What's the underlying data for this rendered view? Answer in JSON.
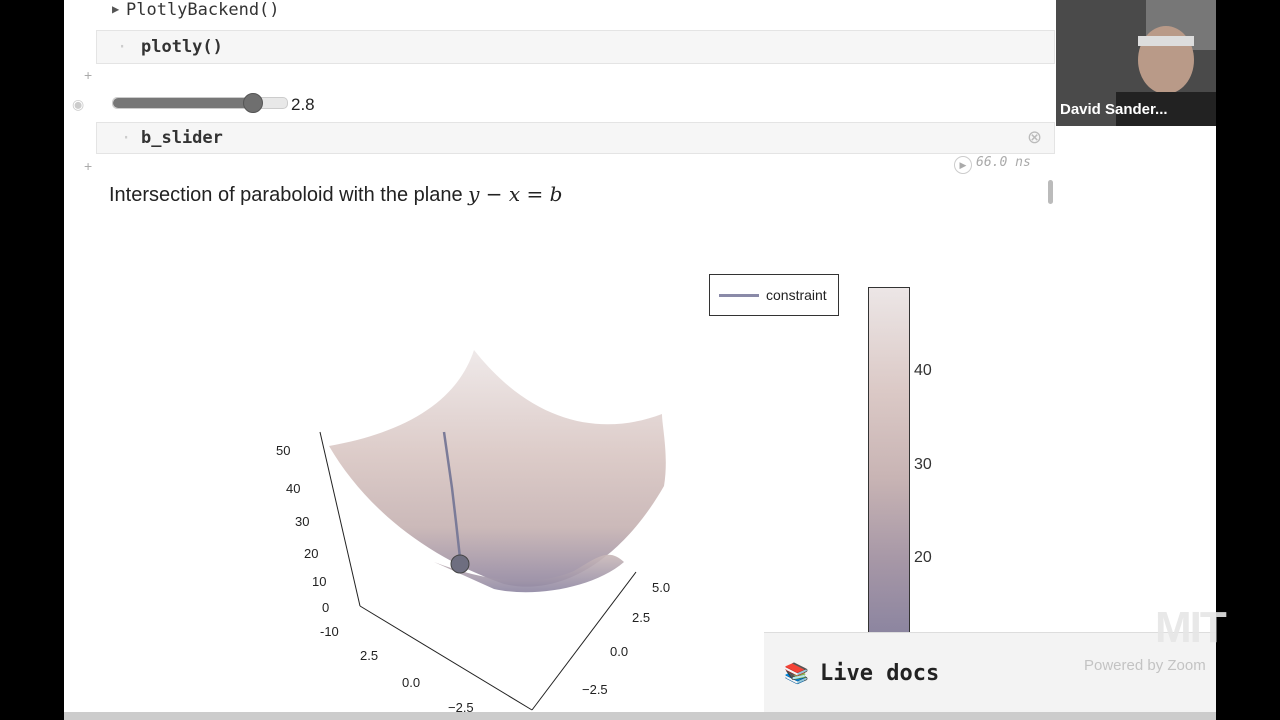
{
  "notebook": {
    "cell1": {
      "code": "PlotlyBackend()",
      "collapse_glyph": "▶"
    },
    "cell2": {
      "code": "plotly()"
    },
    "slider": {
      "value": "2.8",
      "fraction": 0.8
    },
    "cell3": {
      "code": "b_slider",
      "close_glyph": "⊗"
    },
    "runtime": "66.0 ns",
    "heading": {
      "text": "Intersection of paraboloid with the plane ",
      "math": "y − x = b"
    }
  },
  "chart_data": {
    "type": "surface3d",
    "legend": [
      {
        "name": "constraint",
        "color": "#8a8aa8"
      }
    ],
    "z_ticks": [
      "50",
      "40",
      "30",
      "20",
      "10",
      "0",
      "-10"
    ],
    "x_ticks": [
      "5.0",
      "2.5",
      "0.0",
      "−2.5"
    ],
    "y_ticks": [
      "2.5",
      "0.0",
      "−2.5"
    ],
    "colorbar_ticks": [
      "40",
      "30",
      "20"
    ],
    "colors": {
      "surface_light": "#ece6e6",
      "surface_mid": "#d9c6c3",
      "surface_dark": "#8c85a0",
      "line": "#7b7b98"
    }
  },
  "live_docs": {
    "icon": "📚",
    "label": "Live docs"
  },
  "video": {
    "participant": "David Sander..."
  },
  "watermark": {
    "powered_by": "Powered by Zoom",
    "logo": "MIT"
  }
}
